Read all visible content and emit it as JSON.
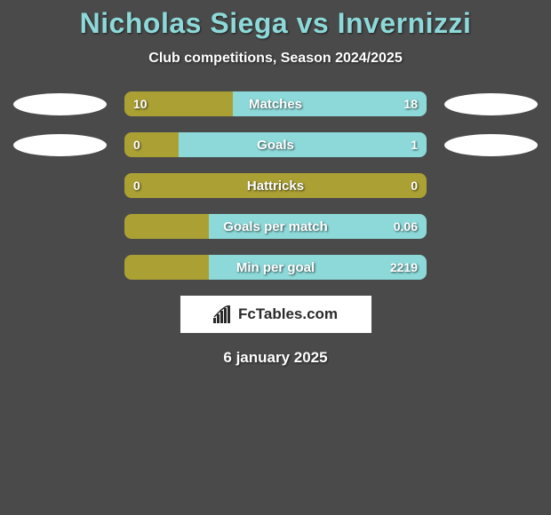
{
  "title": "Nicholas Siega vs Invernizzi",
  "subtitle": "Club competitions, Season 2024/2025",
  "date": "6 january 2025",
  "brand": {
    "text": "FcTables.com"
  },
  "colors": {
    "background": "#4a4a4a",
    "title": "#8dd9d9",
    "text": "#ffffff",
    "left_bar": "#aba034",
    "right_bar": "#8dd9d9",
    "oval": "#ffffff",
    "brand_bg": "#ffffff",
    "brand_text": "#2a2a2a"
  },
  "stats": [
    {
      "label": "Matches",
      "left_value": "10",
      "right_value": "18",
      "left_pct": 36,
      "right_pct": 64,
      "show_ovals": true
    },
    {
      "label": "Goals",
      "left_value": "0",
      "right_value": "1",
      "left_pct": 18,
      "right_pct": 82,
      "show_ovals": true
    },
    {
      "label": "Hattricks",
      "left_value": "0",
      "right_value": "0",
      "left_pct": 100,
      "right_pct": 0,
      "show_ovals": false
    },
    {
      "label": "Goals per match",
      "left_value": "",
      "right_value": "0.06",
      "left_pct": 28,
      "right_pct": 72,
      "show_ovals": false
    },
    {
      "label": "Min per goal",
      "left_value": "",
      "right_value": "2219",
      "left_pct": 28,
      "right_pct": 72,
      "show_ovals": false
    }
  ]
}
